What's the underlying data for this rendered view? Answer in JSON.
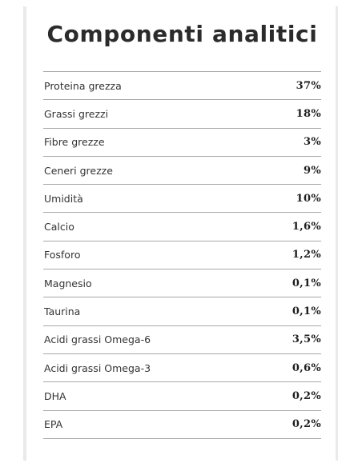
{
  "title": "Componenti analitici",
  "rows": [
    {
      "label": "Proteina grezza",
      "value": "37%"
    },
    {
      "label": "Grassi grezzi",
      "value": "18%"
    },
    {
      "label": "Fibre grezze",
      "value": "3%"
    },
    {
      "label": "Ceneri grezze",
      "value": "9%"
    },
    {
      "label": "Umidità",
      "value": "10%"
    },
    {
      "label": "Calcio",
      "value": "1,6%"
    },
    {
      "label": "Fosforo",
      "value": "1,2%"
    },
    {
      "label": "Magnesio",
      "value": "0,1%"
    },
    {
      "label": "Taurina",
      "value": "0,1%"
    },
    {
      "label": "Acidi grassi Omega-6",
      "value": "3,5%"
    },
    {
      "label": "Acidi grassi Omega-3",
      "value": "0,6%"
    },
    {
      "label": "DHA",
      "value": "0,2%"
    },
    {
      "label": "EPA",
      "value": "0,2%"
    }
  ]
}
